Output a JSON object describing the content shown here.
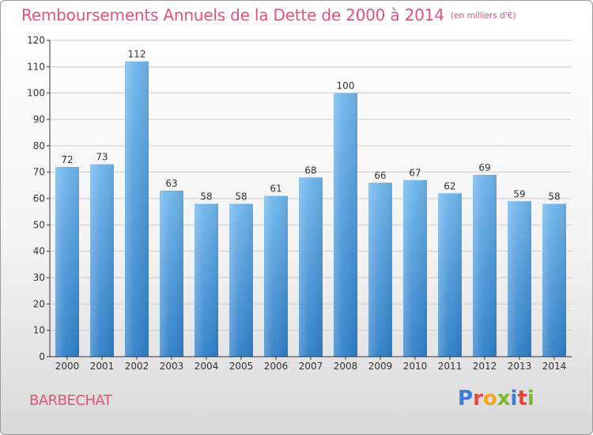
{
  "header": {
    "title": "Remboursements Annuels de la Dette de 2000 à 2014",
    "subtitle": "(en milliers d'€)"
  },
  "footer": {
    "city": "BARBECHAT",
    "logo_text": "Proxiti",
    "logo_colors": [
      "#3a7bd5",
      "#e8463a",
      "#f5a623",
      "#7ab929",
      "#3a7bd5",
      "#e8463a",
      "#7ab929"
    ]
  },
  "colors": {
    "title": "#e4527a",
    "bar_top": "#6fb6ec",
    "bar_bottom": "#2f7fc9",
    "axis": "#333333",
    "grid": "#cccccc"
  },
  "chart_data": {
    "type": "bar",
    "categories": [
      "2000",
      "2001",
      "2002",
      "2003",
      "2004",
      "2005",
      "2006",
      "2007",
      "2008",
      "2009",
      "2010",
      "2011",
      "2012",
      "2013",
      "2014"
    ],
    "values": [
      72,
      73,
      112,
      63,
      58,
      58,
      61,
      68,
      100,
      66,
      67,
      62,
      69,
      59,
      58
    ],
    "ylim": [
      0,
      120
    ],
    "yticks": [
      0,
      10,
      20,
      30,
      40,
      50,
      60,
      70,
      80,
      90,
      100,
      110,
      120
    ],
    "grid": true,
    "data_labels": true
  }
}
